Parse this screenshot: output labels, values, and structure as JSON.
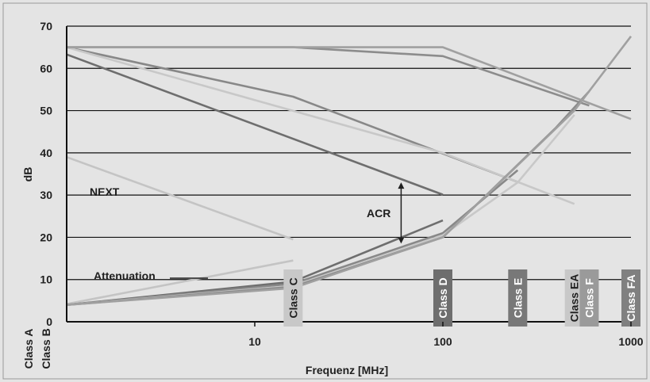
{
  "chart_data": {
    "type": "line",
    "xscale": "log",
    "xlim": [
      1,
      1000
    ],
    "ylim": [
      0,
      70
    ],
    "xlabel": "Frequenz [MHz]",
    "ylabel": "dB",
    "yticks": [
      "0",
      "10",
      "20",
      "30",
      "40",
      "50",
      "60",
      "70"
    ],
    "xticks": [
      {
        "value": 10,
        "label": "10"
      },
      {
        "value": 100,
        "label": "100"
      },
      {
        "value": 1000,
        "label": "1000"
      }
    ],
    "grid": true,
    "annotations": {
      "next": "NEXT",
      "attenuation": "Attenuation",
      "acr": "ACR",
      "acr_arrow": {
        "x": 60,
        "y_top": 33,
        "y_bottom": 18.5
      }
    },
    "class_labels": [
      {
        "label": "Class A",
        "freq": 1
      },
      {
        "label": "Class B",
        "freq": 1
      }
    ],
    "class_markers": [
      {
        "label": "Class C",
        "freq": 16,
        "color": "#c8c8c8",
        "text_color": "#1f1f1f"
      },
      {
        "label": "Class D",
        "freq": 100,
        "color": "#6e6e6e",
        "text_color": "#ffffff"
      },
      {
        "label": "Class E",
        "freq": 250,
        "color": "#787878",
        "text_color": "#ffffff"
      },
      {
        "label": "Class EA",
        "freq": 500,
        "color": "#c8c8c8",
        "text_color": "#1f1f1f"
      },
      {
        "label": "Class F",
        "freq": 600,
        "color": "#9a9a9a",
        "text_color": "#ffffff"
      },
      {
        "label": "Class FA",
        "freq": 1000,
        "color": "#808080",
        "text_color": "#ffffff"
      }
    ],
    "series": [
      {
        "class": "C",
        "kind": "NEXT",
        "color": "#c4c4c4",
        "points": [
          [
            1,
            39
          ],
          [
            16,
            19.5
          ]
        ]
      },
      {
        "class": "C",
        "kind": "Attenuation",
        "color": "#c4c4c4",
        "points": [
          [
            1,
            4.2
          ],
          [
            16,
            14.5
          ]
        ]
      },
      {
        "class": "D",
        "kind": "NEXT",
        "color": "#6e6e6e",
        "points": [
          [
            1,
            63.3
          ],
          [
            100,
            30.1
          ]
        ]
      },
      {
        "class": "D",
        "kind": "Attenuation",
        "color": "#6e6e6e",
        "points": [
          [
            1,
            4
          ],
          [
            16,
            9.5
          ],
          [
            100,
            24
          ]
        ]
      },
      {
        "class": "E",
        "kind": "NEXT",
        "color": "#888888",
        "points": [
          [
            1,
            65
          ],
          [
            16,
            53.3
          ],
          [
            250,
            33.1
          ]
        ]
      },
      {
        "class": "E",
        "kind": "Attenuation",
        "color": "#888888",
        "points": [
          [
            1,
            4
          ],
          [
            16,
            9
          ],
          [
            100,
            21
          ],
          [
            250,
            35.9
          ]
        ]
      },
      {
        "class": "EA",
        "kind": "NEXT",
        "color": "#c8c8c8",
        "points": [
          [
            1,
            65
          ],
          [
            100,
            40
          ],
          [
            500,
            27.9
          ]
        ]
      },
      {
        "class": "EA",
        "kind": "Attenuation",
        "color": "#c8c8c8",
        "points": [
          [
            1,
            4
          ],
          [
            16,
            8.5
          ],
          [
            100,
            20.5
          ],
          [
            250,
            33
          ],
          [
            500,
            49
          ]
        ]
      },
      {
        "class": "F",
        "kind": "NEXT",
        "color": "#8c8c8c",
        "points": [
          [
            1,
            65
          ],
          [
            16,
            65
          ],
          [
            100,
            62.9
          ],
          [
            600,
            51.2
          ]
        ]
      },
      {
        "class": "F",
        "kind": "Attenuation",
        "color": "#8c8c8c",
        "points": [
          [
            1,
            4
          ],
          [
            16,
            8.3
          ],
          [
            100,
            20
          ],
          [
            400,
            46
          ],
          [
            600,
            54.6
          ]
        ]
      },
      {
        "class": "FA",
        "kind": "NEXT",
        "color": "#a0a0a0",
        "points": [
          [
            1,
            65
          ],
          [
            100,
            65
          ],
          [
            1000,
            48
          ]
        ]
      },
      {
        "class": "FA",
        "kind": "Attenuation",
        "color": "#a0a0a0",
        "points": [
          [
            1,
            4
          ],
          [
            16,
            8
          ],
          [
            100,
            20
          ],
          [
            500,
            50
          ],
          [
            1000,
            67.6
          ]
        ]
      }
    ]
  }
}
